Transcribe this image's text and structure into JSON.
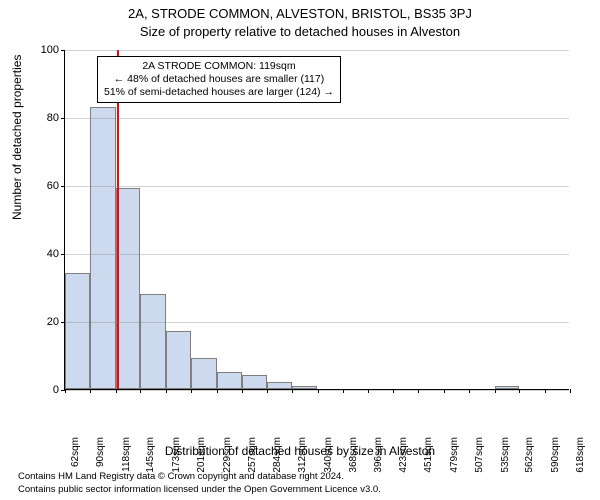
{
  "titles": {
    "line1": "2A, STRODE COMMON, ALVESTON, BRISTOL, BS35 3PJ",
    "line2": "Size of property relative to detached houses in Alveston"
  },
  "axes": {
    "ylabel": "Number of detached properties",
    "xlabel": "Distribution of detached houses by size in Alveston",
    "ylim": [
      0,
      100
    ],
    "ytick_step": 20,
    "grid_color": "#7f7f7f",
    "tick_fontsize": 11,
    "label_fontsize": 12
  },
  "histogram": {
    "type": "histogram",
    "bin_edges": [
      62,
      90,
      118,
      145,
      173,
      201,
      229,
      257,
      284,
      312,
      340,
      368,
      396,
      423,
      451,
      479,
      507,
      535,
      562,
      590,
      618
    ],
    "values": [
      34,
      83,
      59,
      28,
      17,
      9,
      5,
      4,
      2,
      1,
      0,
      0,
      0,
      0,
      0,
      0,
      0,
      1,
      0,
      0
    ],
    "bar_fill": "#cdd9ef",
    "bar_stroke": "#7f7f7f",
    "xtick_unit": "sqm"
  },
  "reference": {
    "x": 119,
    "color": "#ff0000",
    "width": 2
  },
  "annotation": {
    "lines": [
      "2A STRODE COMMON: 119sqm",
      "← 48% of detached houses are smaller (117)",
      "51% of semi-detached houses are larger (124) →"
    ],
    "border_color": "#000000",
    "background": "#ffffff",
    "fontsize": 10.5
  },
  "footer": {
    "line1": "Contains HM Land Registry data © Crown copyright and database right 2024.",
    "line2": "Contains public sector information licensed under the Open Government Licence v3.0."
  },
  "colors": {
    "background": "#ffffff",
    "text": "#000000"
  }
}
